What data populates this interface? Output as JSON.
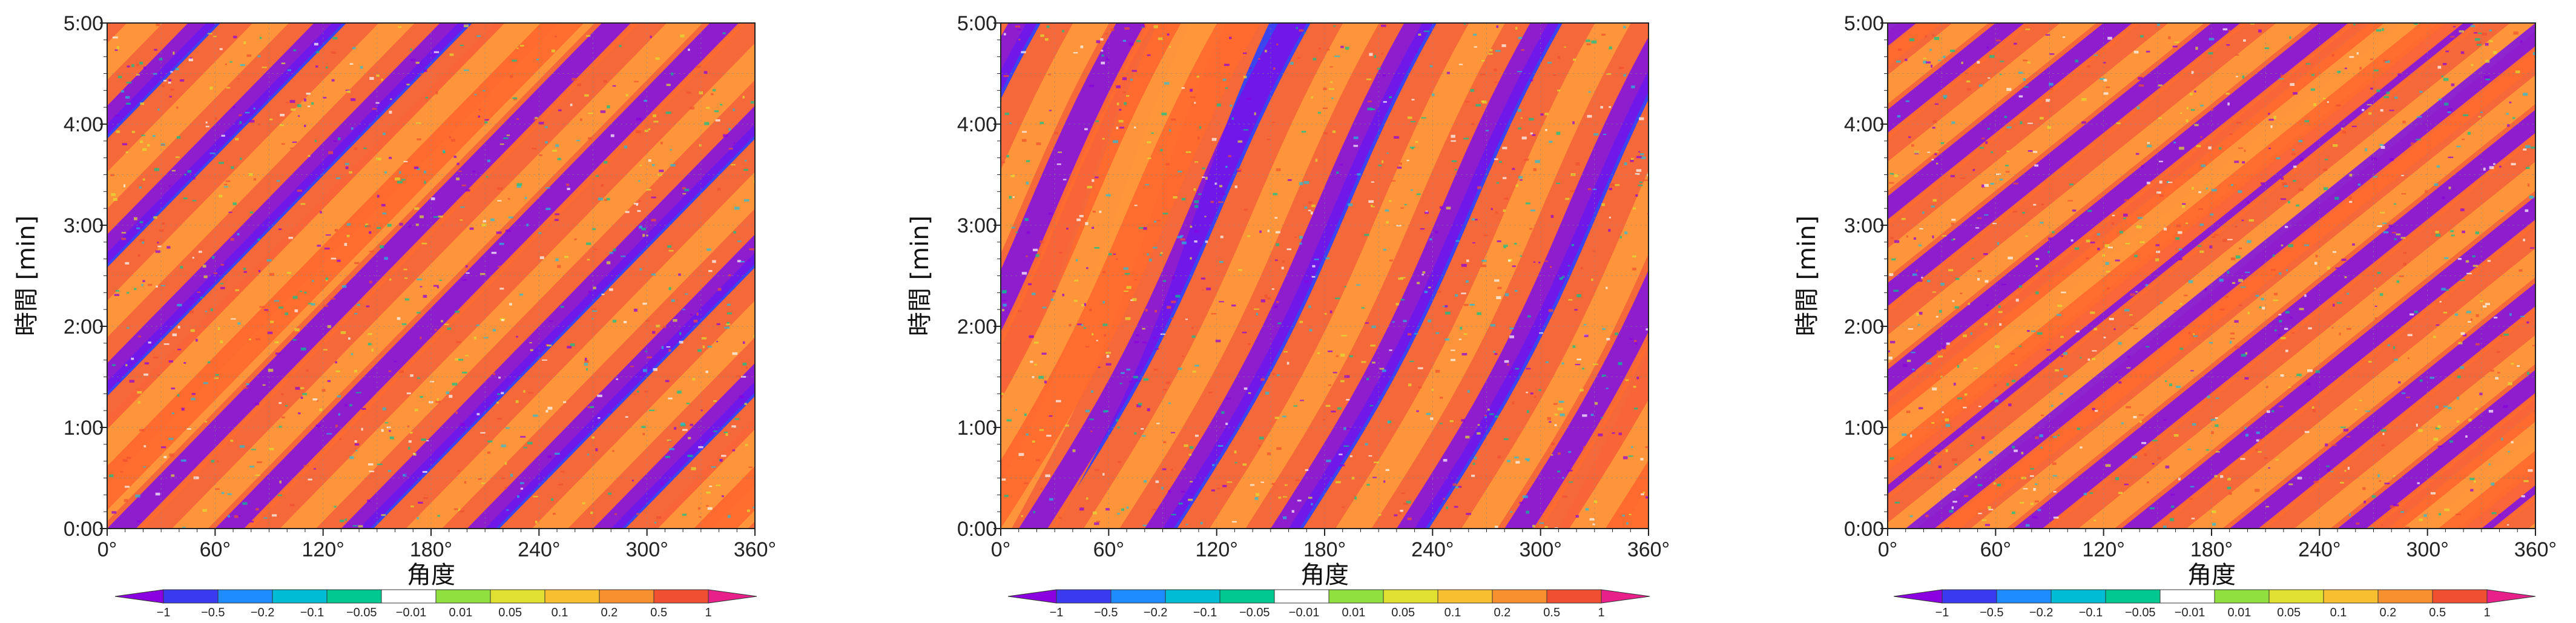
{
  "chart_data": [
    {
      "type": "heatmap",
      "panel": "left",
      "xlabel": "角度",
      "ylabel": "時間 [min]",
      "x_ticks": [
        "0°",
        "60°",
        "120°",
        "180°",
        "240°",
        "300°",
        "360°"
      ],
      "y_ticks": [
        "0:00",
        "1:00",
        "2:00",
        "3:00",
        "4:00",
        "5:00"
      ],
      "xlim_deg": [
        0,
        360
      ],
      "ylim_min": [
        0,
        5
      ],
      "stripes": [
        {
          "angle_at_t0_deg": -20,
          "slope_deg_per_min": 55
        },
        {
          "angle_at_t0_deg": 40,
          "slope_deg_per_min": 55
        },
        {
          "angle_at_t0_deg": 100,
          "slope_deg_per_min": 55
        },
        {
          "angle_at_t0_deg": 170,
          "slope_deg_per_min": 55
        },
        {
          "angle_at_t0_deg": 240,
          "slope_deg_per_min": 55
        },
        {
          "angle_at_t0_deg": 310,
          "slope_deg_per_min": 55
        }
      ],
      "grid": true
    },
    {
      "type": "heatmap",
      "panel": "middle",
      "xlabel": "角度",
      "ylabel": "時間 [min]",
      "x_ticks": [
        "0°",
        "60°",
        "120°",
        "180°",
        "240°",
        "300°",
        "360°"
      ],
      "y_ticks": [
        "0:00",
        "1:00",
        "2:00",
        "3:00",
        "4:00",
        "5:00"
      ],
      "xlim_deg": [
        0,
        360
      ],
      "ylim_min": [
        0,
        5
      ],
      "stripes": [
        {
          "angle_at_t0_deg": -10,
          "slope_deg_per_min": 25
        },
        {
          "angle_at_t0_deg": 50,
          "slope_deg_per_min": 30
        },
        {
          "angle_at_t0_deg": 120,
          "slope_deg_per_min": 30
        },
        {
          "angle_at_t0_deg": 190,
          "slope_deg_per_min": 30
        },
        {
          "angle_at_t0_deg": 260,
          "slope_deg_per_min": 30
        },
        {
          "angle_at_t0_deg": 320,
          "slope_deg_per_min": 30
        }
      ],
      "grid": true
    },
    {
      "type": "heatmap",
      "panel": "right",
      "xlabel": "角度",
      "ylabel": "時間 [min]",
      "x_ticks": [
        "0°",
        "60°",
        "120°",
        "180°",
        "240°",
        "300°",
        "360°"
      ],
      "y_ticks": [
        "0:00",
        "1:00",
        "2:00",
        "3:00",
        "4:00",
        "5:00"
      ],
      "xlim_deg": [
        0,
        360
      ],
      "ylim_min": [
        0,
        5
      ],
      "stripes": [
        {
          "angle_at_t0_deg": -60,
          "slope_deg_per_min": 70
        },
        {
          "angle_at_t0_deg": 0,
          "slope_deg_per_min": 70
        },
        {
          "angle_at_t0_deg": 50,
          "slope_deg_per_min": 70
        },
        {
          "angle_at_t0_deg": 110,
          "slope_deg_per_min": 70
        },
        {
          "angle_at_t0_deg": 170,
          "slope_deg_per_min": 70
        },
        {
          "angle_at_t0_deg": 230,
          "slope_deg_per_min": 70
        },
        {
          "angle_at_t0_deg": 290,
          "slope_deg_per_min": 70
        }
      ],
      "grid": true
    }
  ],
  "colorbar": {
    "labels": [
      "−1",
      "−0.5",
      "−0.2",
      "−0.1",
      "−0.05",
      "−0.01",
      "0.01",
      "0.05",
      "0.1",
      "0.2",
      "0.5",
      "1"
    ],
    "colors": [
      "#8a00e0",
      "#3a3af0",
      "#1e8cff",
      "#00bcd4",
      "#00c890",
      "#ffffff",
      "#90e040",
      "#e0e030",
      "#f8c030",
      "#f89030",
      "#f05030",
      "#e8208a"
    ],
    "extend": "both"
  }
}
